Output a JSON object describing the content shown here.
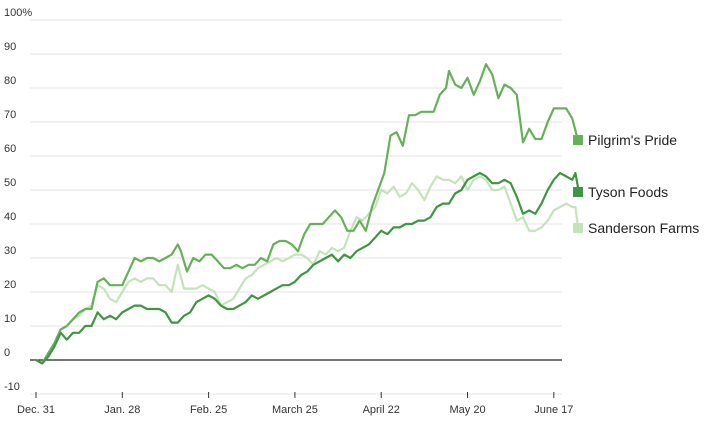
{
  "chart_data": {
    "type": "line",
    "title": "",
    "xlabel": "",
    "ylabel": "",
    "x_ticks": [
      "Dec. 31",
      "Jan. 28",
      "Feb. 25",
      "March 25",
      "April 22",
      "May 20",
      "June 17"
    ],
    "x_range": [
      "2017-12-31",
      "2018-06-19"
    ],
    "y_ticks": [
      "100%",
      "90",
      "80",
      "70",
      "60",
      "50",
      "40",
      "30",
      "20",
      "10",
      "0",
      "-10"
    ],
    "ylim": [
      -10,
      100
    ],
    "grid": "horizontal",
    "legend_position": "right",
    "series": [
      {
        "name": "Pilgrim's Pride",
        "color": "#66b05a",
        "points": [
          [
            "2017-12-31",
            0
          ],
          [
            "2018-01-02",
            -1
          ],
          [
            "2018-01-04",
            2
          ],
          [
            "2018-01-06",
            5
          ],
          [
            "2018-01-08",
            9
          ],
          [
            "2018-01-10",
            10
          ],
          [
            "2018-01-12",
            12
          ],
          [
            "2018-01-14",
            14
          ],
          [
            "2018-01-16",
            15
          ],
          [
            "2018-01-18",
            15
          ],
          [
            "2018-01-20",
            23
          ],
          [
            "2018-01-22",
            24
          ],
          [
            "2018-01-24",
            22
          ],
          [
            "2018-01-26",
            22
          ],
          [
            "2018-01-28",
            22
          ],
          [
            "2018-01-30",
            26
          ],
          [
            "2018-02-01",
            30
          ],
          [
            "2018-02-03",
            29
          ],
          [
            "2018-02-05",
            30
          ],
          [
            "2018-02-07",
            30
          ],
          [
            "2018-02-09",
            29
          ],
          [
            "2018-02-11",
            30
          ],
          [
            "2018-02-13",
            31
          ],
          [
            "2018-02-15",
            34
          ],
          [
            "2018-02-16",
            32
          ],
          [
            "2018-02-18",
            26
          ],
          [
            "2018-02-20",
            30
          ],
          [
            "2018-02-22",
            29
          ],
          [
            "2018-02-24",
            31
          ],
          [
            "2018-02-26",
            31
          ],
          [
            "2018-02-28",
            29
          ],
          [
            "2018-03-02",
            27
          ],
          [
            "2018-03-04",
            27
          ],
          [
            "2018-03-06",
            28
          ],
          [
            "2018-03-08",
            27
          ],
          [
            "2018-03-10",
            28
          ],
          [
            "2018-03-12",
            28
          ],
          [
            "2018-03-14",
            30
          ],
          [
            "2018-03-16",
            29
          ],
          [
            "2018-03-18",
            34
          ],
          [
            "2018-03-20",
            35
          ],
          [
            "2018-03-22",
            35
          ],
          [
            "2018-03-24",
            34
          ],
          [
            "2018-03-26",
            32
          ],
          [
            "2018-03-28",
            37
          ],
          [
            "2018-03-30",
            40
          ],
          [
            "2018-04-01",
            40
          ],
          [
            "2018-04-03",
            40
          ],
          [
            "2018-04-05",
            42
          ],
          [
            "2018-04-07",
            44
          ],
          [
            "2018-04-09",
            42
          ],
          [
            "2018-04-11",
            38
          ],
          [
            "2018-04-13",
            38
          ],
          [
            "2018-04-15",
            41
          ],
          [
            "2018-04-17",
            38
          ],
          [
            "2018-04-19",
            45
          ],
          [
            "2018-04-21",
            50
          ],
          [
            "2018-04-23",
            55
          ],
          [
            "2018-04-25",
            66
          ],
          [
            "2018-04-27",
            67
          ],
          [
            "2018-04-29",
            63
          ],
          [
            "2018-05-01",
            72
          ],
          [
            "2018-05-03",
            72
          ],
          [
            "2018-05-05",
            73
          ],
          [
            "2018-05-07",
            73
          ],
          [
            "2018-05-09",
            73
          ],
          [
            "2018-05-11",
            78
          ],
          [
            "2018-05-13",
            80
          ],
          [
            "2018-05-14",
            85
          ],
          [
            "2018-05-16",
            81
          ],
          [
            "2018-05-18",
            80
          ],
          [
            "2018-05-20",
            83
          ],
          [
            "2018-05-22",
            78
          ],
          [
            "2018-05-24",
            82
          ],
          [
            "2018-05-26",
            87
          ],
          [
            "2018-05-28",
            84
          ],
          [
            "2018-05-30",
            77
          ],
          [
            "2018-06-01",
            81
          ],
          [
            "2018-06-03",
            80
          ],
          [
            "2018-06-05",
            78
          ],
          [
            "2018-06-07",
            64
          ],
          [
            "2018-06-09",
            68
          ],
          [
            "2018-06-11",
            65
          ],
          [
            "2018-06-13",
            65
          ],
          [
            "2018-06-15",
            70
          ],
          [
            "2018-06-17",
            74
          ],
          [
            "2018-06-19",
            74
          ],
          [
            "2018-06-21",
            74
          ],
          [
            "2018-06-23",
            71
          ],
          [
            "2018-06-25",
            64
          ]
        ]
      },
      {
        "name": "Tyson Foods",
        "color": "#3f9642",
        "points": [
          [
            "2017-12-31",
            0
          ],
          [
            "2018-01-02",
            -1
          ],
          [
            "2018-01-04",
            1
          ],
          [
            "2018-01-06",
            4
          ],
          [
            "2018-01-08",
            8
          ],
          [
            "2018-01-10",
            6
          ],
          [
            "2018-01-12",
            8
          ],
          [
            "2018-01-14",
            8
          ],
          [
            "2018-01-16",
            10
          ],
          [
            "2018-01-18",
            10
          ],
          [
            "2018-01-20",
            14
          ],
          [
            "2018-01-22",
            12
          ],
          [
            "2018-01-24",
            13
          ],
          [
            "2018-01-26",
            12
          ],
          [
            "2018-01-28",
            14
          ],
          [
            "2018-01-30",
            15
          ],
          [
            "2018-02-01",
            16
          ],
          [
            "2018-02-03",
            16
          ],
          [
            "2018-02-05",
            15
          ],
          [
            "2018-02-07",
            15
          ],
          [
            "2018-02-09",
            15
          ],
          [
            "2018-02-11",
            14
          ],
          [
            "2018-02-13",
            11
          ],
          [
            "2018-02-15",
            11
          ],
          [
            "2018-02-17",
            13
          ],
          [
            "2018-02-19",
            14
          ],
          [
            "2018-02-21",
            17
          ],
          [
            "2018-02-23",
            18
          ],
          [
            "2018-02-25",
            19
          ],
          [
            "2018-02-27",
            18
          ],
          [
            "2018-03-01",
            16
          ],
          [
            "2018-03-03",
            15
          ],
          [
            "2018-03-05",
            15
          ],
          [
            "2018-03-07",
            16
          ],
          [
            "2018-03-09",
            17
          ],
          [
            "2018-03-11",
            19
          ],
          [
            "2018-03-13",
            18
          ],
          [
            "2018-03-15",
            19
          ],
          [
            "2018-03-17",
            20
          ],
          [
            "2018-03-19",
            21
          ],
          [
            "2018-03-21",
            22
          ],
          [
            "2018-03-23",
            22
          ],
          [
            "2018-03-25",
            23
          ],
          [
            "2018-03-27",
            25
          ],
          [
            "2018-03-29",
            26
          ],
          [
            "2018-03-31",
            28
          ],
          [
            "2018-04-02",
            29
          ],
          [
            "2018-04-04",
            30
          ],
          [
            "2018-04-06",
            31
          ],
          [
            "2018-04-08",
            29
          ],
          [
            "2018-04-10",
            31
          ],
          [
            "2018-04-12",
            30
          ],
          [
            "2018-04-14",
            32
          ],
          [
            "2018-04-16",
            33
          ],
          [
            "2018-04-18",
            34
          ],
          [
            "2018-04-20",
            36
          ],
          [
            "2018-04-22",
            38
          ],
          [
            "2018-04-24",
            37
          ],
          [
            "2018-04-26",
            39
          ],
          [
            "2018-04-28",
            39
          ],
          [
            "2018-04-30",
            40
          ],
          [
            "2018-05-02",
            40
          ],
          [
            "2018-05-04",
            41
          ],
          [
            "2018-05-06",
            41
          ],
          [
            "2018-05-08",
            42
          ],
          [
            "2018-05-10",
            45
          ],
          [
            "2018-05-12",
            46
          ],
          [
            "2018-05-14",
            46
          ],
          [
            "2018-05-16",
            49
          ],
          [
            "2018-05-18",
            50
          ],
          [
            "2018-05-20",
            53
          ],
          [
            "2018-05-22",
            54
          ],
          [
            "2018-05-24",
            55
          ],
          [
            "2018-05-26",
            54
          ],
          [
            "2018-05-28",
            52
          ],
          [
            "2018-05-30",
            52
          ],
          [
            "2018-06-01",
            53
          ],
          [
            "2018-06-03",
            52
          ],
          [
            "2018-06-05",
            48
          ],
          [
            "2018-06-07",
            43
          ],
          [
            "2018-06-09",
            44
          ],
          [
            "2018-06-11",
            43
          ],
          [
            "2018-06-13",
            46
          ],
          [
            "2018-06-15",
            50
          ],
          [
            "2018-06-17",
            53
          ],
          [
            "2018-06-19",
            55
          ],
          [
            "2018-06-21",
            54
          ],
          [
            "2018-06-23",
            53
          ],
          [
            "2018-06-24",
            55
          ],
          [
            "2018-06-25",
            50
          ]
        ]
      },
      {
        "name": "Sanderson Farms",
        "color": "#c5e3bb",
        "points": [
          [
            "2017-12-31",
            0
          ],
          [
            "2018-01-02",
            -1
          ],
          [
            "2018-01-04",
            2
          ],
          [
            "2018-01-06",
            5
          ],
          [
            "2018-01-08",
            9
          ],
          [
            "2018-01-10",
            10
          ],
          [
            "2018-01-12",
            12
          ],
          [
            "2018-01-14",
            13
          ],
          [
            "2018-01-16",
            15
          ],
          [
            "2018-01-18",
            16
          ],
          [
            "2018-01-20",
            22
          ],
          [
            "2018-01-22",
            21
          ],
          [
            "2018-01-24",
            18
          ],
          [
            "2018-01-26",
            17
          ],
          [
            "2018-01-28",
            20
          ],
          [
            "2018-01-30",
            23
          ],
          [
            "2018-02-01",
            24
          ],
          [
            "2018-02-03",
            23
          ],
          [
            "2018-02-05",
            24
          ],
          [
            "2018-02-07",
            24
          ],
          [
            "2018-02-09",
            22
          ],
          [
            "2018-02-11",
            22
          ],
          [
            "2018-02-13",
            20
          ],
          [
            "2018-02-15",
            28
          ],
          [
            "2018-02-17",
            21
          ],
          [
            "2018-02-19",
            21
          ],
          [
            "2018-02-21",
            21
          ],
          [
            "2018-02-23",
            22
          ],
          [
            "2018-02-25",
            21
          ],
          [
            "2018-02-27",
            20
          ],
          [
            "2018-03-01",
            16
          ],
          [
            "2018-03-03",
            17
          ],
          [
            "2018-03-05",
            18
          ],
          [
            "2018-03-07",
            21
          ],
          [
            "2018-03-09",
            24
          ],
          [
            "2018-03-11",
            25
          ],
          [
            "2018-03-13",
            27
          ],
          [
            "2018-03-15",
            28
          ],
          [
            "2018-03-17",
            29
          ],
          [
            "2018-03-19",
            30
          ],
          [
            "2018-03-21",
            29
          ],
          [
            "2018-03-23",
            30
          ],
          [
            "2018-03-25",
            31
          ],
          [
            "2018-03-27",
            31
          ],
          [
            "2018-03-29",
            30
          ],
          [
            "2018-03-31",
            28
          ],
          [
            "2018-04-02",
            32
          ],
          [
            "2018-04-04",
            31
          ],
          [
            "2018-04-06",
            33
          ],
          [
            "2018-04-08",
            32
          ],
          [
            "2018-04-10",
            33
          ],
          [
            "2018-04-12",
            38
          ],
          [
            "2018-04-14",
            42
          ],
          [
            "2018-04-16",
            41
          ],
          [
            "2018-04-18",
            43
          ],
          [
            "2018-04-20",
            45
          ],
          [
            "2018-04-22",
            50
          ],
          [
            "2018-04-24",
            49
          ],
          [
            "2018-04-26",
            51
          ],
          [
            "2018-04-28",
            48
          ],
          [
            "2018-04-30",
            49
          ],
          [
            "2018-05-02",
            52
          ],
          [
            "2018-05-04",
            50
          ],
          [
            "2018-05-06",
            47
          ],
          [
            "2018-05-08",
            51
          ],
          [
            "2018-05-10",
            54
          ],
          [
            "2018-05-12",
            53
          ],
          [
            "2018-05-14",
            53
          ],
          [
            "2018-05-16",
            52
          ],
          [
            "2018-05-18",
            54
          ],
          [
            "2018-05-20",
            50
          ],
          [
            "2018-05-22",
            53
          ],
          [
            "2018-05-24",
            54
          ],
          [
            "2018-05-26",
            53
          ],
          [
            "2018-05-28",
            50
          ],
          [
            "2018-05-30",
            50
          ],
          [
            "2018-06-01",
            51
          ],
          [
            "2018-06-03",
            46
          ],
          [
            "2018-06-05",
            41
          ],
          [
            "2018-06-07",
            42
          ],
          [
            "2018-06-09",
            38
          ],
          [
            "2018-06-11",
            38
          ],
          [
            "2018-06-13",
            39
          ],
          [
            "2018-06-15",
            41
          ],
          [
            "2018-06-17",
            44
          ],
          [
            "2018-06-19",
            45
          ],
          [
            "2018-06-21",
            46
          ],
          [
            "2018-06-23",
            45
          ],
          [
            "2018-06-24",
            45
          ],
          [
            "2018-06-25",
            38
          ]
        ]
      }
    ]
  }
}
